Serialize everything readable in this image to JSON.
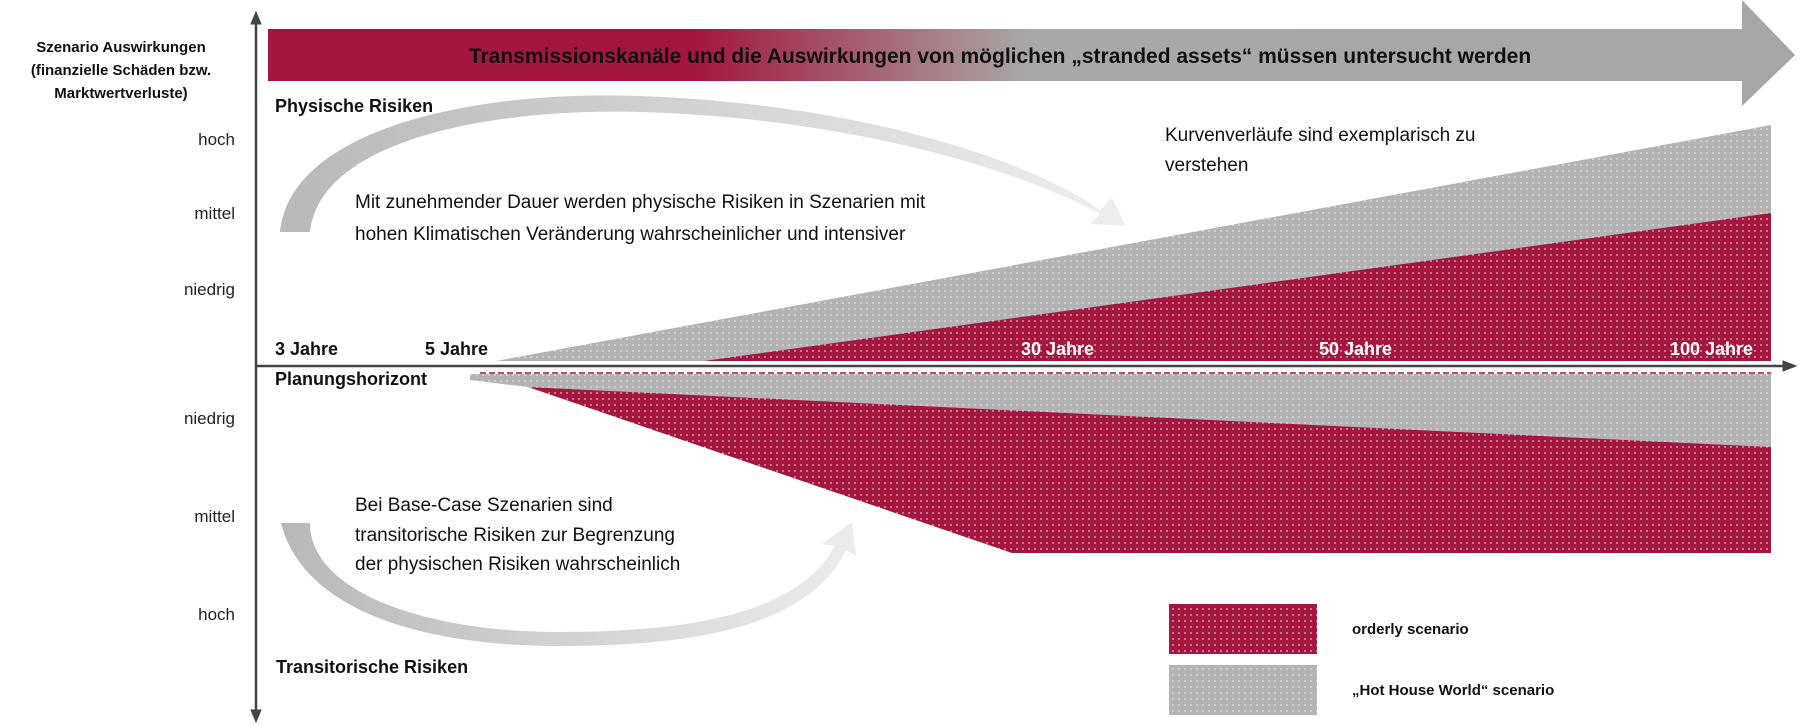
{
  "colors": {
    "orderly": "#a3173f",
    "hot_house": "#b3b3b3",
    "axis": "#444444",
    "banner_start": "#a3173f",
    "banner_end": "#a6a6a6"
  },
  "y_axis_title": [
    "Szenario Auswirkungen",
    "(finanzielle Schäden bzw.",
    "Marktwertverluste)"
  ],
  "banner": "Transmissionskanäle und die Auswirkungen von möglichen „stranded assets“ müssen untersucht werden",
  "upper": {
    "title": "Physische Risiken",
    "ticks": [
      "hoch",
      "mittel",
      "niedrig"
    ],
    "note": [
      "Mit zunehmender Dauer werden physische Risiken in Szenarien mit",
      "hohen Klimatischen Veränderung wahrscheinlicher und intensiver"
    ],
    "curve_note": [
      "Kurvenverläufe sind exemplarisch zu",
      "verstehen"
    ]
  },
  "time_labels": [
    "3 Jahre",
    "5 Jahre",
    "30 Jahre",
    "50 Jahre",
    "100 Jahre"
  ],
  "planning_label": "Planungshorizont",
  "lower": {
    "title": "Transitorische Risiken",
    "ticks": [
      "niedrig",
      "mittel",
      "hoch"
    ],
    "note": [
      "Bei Base-Case Szenarien sind",
      "transitorische Risiken zur Begrenzung",
      "der physischen Risiken wahrscheinlich"
    ]
  },
  "legend": [
    {
      "label": "orderly scenario",
      "key": "orderly"
    },
    {
      "label": "„Hot House World“ scenario",
      "key": "hot_house"
    }
  ],
  "icons": {
    "upper_arrow": "curved-arrow-right-down",
    "lower_arrow": "curved-arrow-up-right"
  }
}
